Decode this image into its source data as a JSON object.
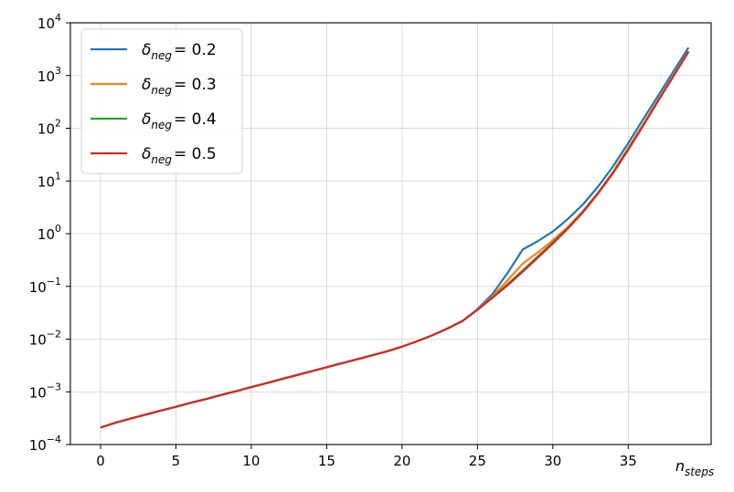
{
  "chart_data": {
    "type": "line",
    "xscale": "linear",
    "yscale": "log",
    "xlim": [
      -2,
      40.5
    ],
    "ylim": [
      0.0001,
      10000
    ],
    "grid": true,
    "legend_position": "upper-left",
    "x_ticks": [
      "0",
      "5",
      "10",
      "15",
      "20",
      "25",
      "30",
      "35"
    ],
    "y_ticks": [
      {
        "base": "10",
        "exp": "−4",
        "value": 0.0001
      },
      {
        "base": "10",
        "exp": "−3",
        "value": 0.001
      },
      {
        "base": "10",
        "exp": "−2",
        "value": 0.01
      },
      {
        "base": "10",
        "exp": "−1",
        "value": 0.1
      },
      {
        "base": "10",
        "exp": "0",
        "value": 1
      },
      {
        "base": "10",
        "exp": "1",
        "value": 10
      },
      {
        "base": "10",
        "exp": "2",
        "value": 100
      },
      {
        "base": "10",
        "exp": "3",
        "value": 1000
      },
      {
        "base": "10",
        "exp": "4",
        "value": 10000
      }
    ],
    "xlabel": {
      "main": "n",
      "sub": "steps"
    },
    "x": [
      0,
      1,
      2,
      3,
      4,
      5,
      6,
      7,
      8,
      9,
      10,
      11,
      12,
      13,
      14,
      15,
      16,
      17,
      18,
      19,
      20,
      21,
      22,
      23,
      24,
      25,
      26,
      27,
      28,
      29,
      30,
      31,
      32,
      33,
      34,
      35,
      36,
      37,
      38,
      39
    ],
    "series": [
      {
        "name_symbol": "δ",
        "name_sub": "neg",
        "name_value": "= 0.2",
        "color": "#1f77b4",
        "values": [
          0.00021,
          0.00026,
          0.00031,
          0.00037,
          0.00044,
          0.00052,
          0.00062,
          0.00073,
          0.00087,
          0.00103,
          0.00123,
          0.00146,
          0.00174,
          0.00207,
          0.00246,
          0.00292,
          0.00348,
          0.00413,
          0.00492,
          0.00585,
          0.0072,
          0.0091,
          0.0118,
          0.0158,
          0.022,
          0.037,
          0.072,
          0.18,
          0.5,
          0.72,
          1.1,
          1.9,
          3.6,
          7.8,
          19,
          52,
          150,
          420,
          1200,
          3400
        ]
      },
      {
        "name_symbol": "δ",
        "name_sub": "neg",
        "name_value": "= 0.3",
        "color": "#ff7f0e",
        "values": [
          0.00021,
          0.00026,
          0.00031,
          0.00037,
          0.00044,
          0.00052,
          0.00062,
          0.00073,
          0.00087,
          0.00103,
          0.00123,
          0.00146,
          0.00174,
          0.00207,
          0.00246,
          0.00292,
          0.00348,
          0.00413,
          0.00492,
          0.00585,
          0.0072,
          0.0091,
          0.0118,
          0.0158,
          0.022,
          0.036,
          0.065,
          0.13,
          0.27,
          0.44,
          0.75,
          1.35,
          2.7,
          6.0,
          15,
          42,
          120,
          350,
          1000,
          2900
        ]
      },
      {
        "name_symbol": "δ",
        "name_sub": "neg",
        "name_value": "= 0.4",
        "color": "#2ca02c",
        "values": [
          0.00021,
          0.00026,
          0.00031,
          0.00037,
          0.00044,
          0.00052,
          0.00062,
          0.00073,
          0.00087,
          0.00103,
          0.00123,
          0.00146,
          0.00174,
          0.00207,
          0.00246,
          0.00292,
          0.00348,
          0.00413,
          0.00492,
          0.00585,
          0.0072,
          0.0091,
          0.0118,
          0.0158,
          0.022,
          0.036,
          0.062,
          0.11,
          0.2,
          0.37,
          0.68,
          1.28,
          2.6,
          5.9,
          14.5,
          40,
          115,
          340,
          980,
          2850
        ]
      },
      {
        "name_symbol": "δ",
        "name_sub": "neg",
        "name_value": "= 0.5",
        "color": "#d62728",
        "values": [
          0.00021,
          0.00026,
          0.00031,
          0.00037,
          0.00044,
          0.00052,
          0.00062,
          0.00073,
          0.00087,
          0.00103,
          0.00123,
          0.00146,
          0.00174,
          0.00207,
          0.00246,
          0.00292,
          0.00348,
          0.00413,
          0.00492,
          0.00585,
          0.0072,
          0.0091,
          0.0118,
          0.0158,
          0.022,
          0.036,
          0.061,
          0.105,
          0.19,
          0.35,
          0.65,
          1.25,
          2.55,
          5.8,
          14.2,
          39,
          113,
          335,
          970,
          2830
        ]
      }
    ]
  }
}
